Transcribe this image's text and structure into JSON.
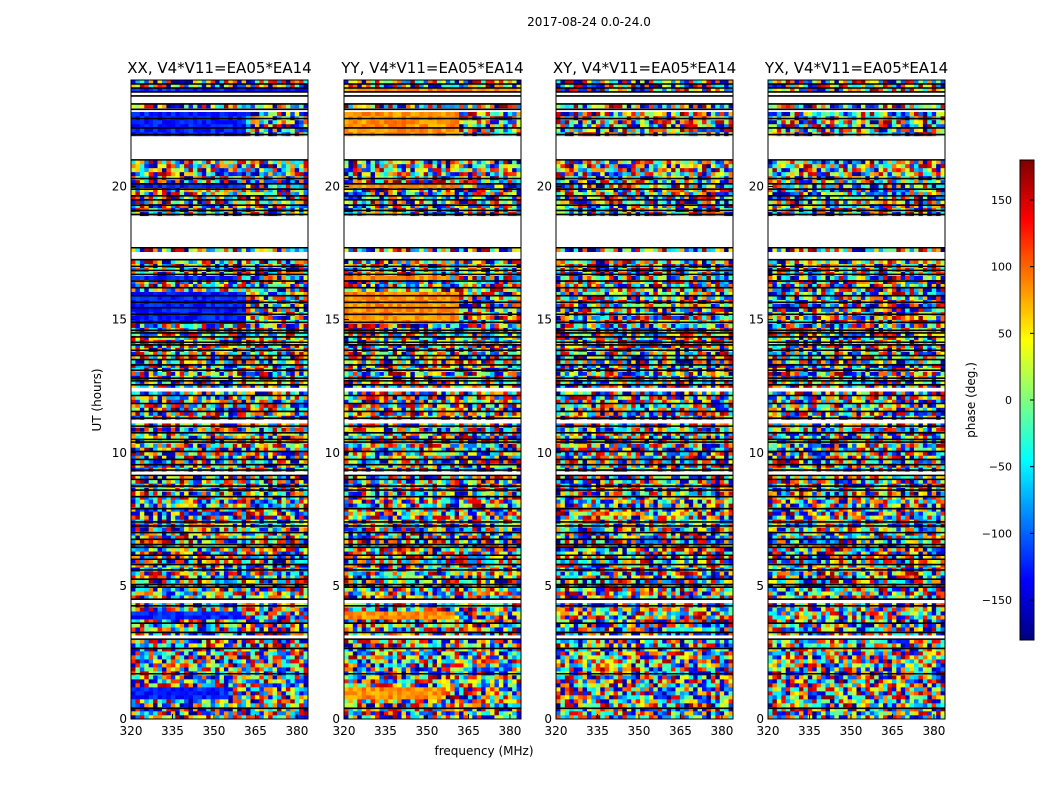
{
  "figure_title": "2017-08-24 0.0-24.0",
  "chart_data": {
    "type": "heatmap",
    "title": "2017-08-24 0.0-24.0",
    "xlabel": "frequency (MHz)",
    "ylabel": "UT (hours)",
    "x_ticks": [
      320,
      335,
      350,
      365,
      380
    ],
    "x_tick_labels": [
      "320",
      "335",
      "350",
      "365",
      "380"
    ],
    "xlim": [
      320,
      384
    ],
    "y_ticks": [
      0,
      5,
      10,
      15,
      20
    ],
    "y_tick_labels": [
      "0",
      "5",
      "10",
      "15",
      "20"
    ],
    "ylim": [
      0,
      24
    ],
    "panels": [
      {
        "title": "XX, V4*V11=EA05*EA14",
        "correlation": "XX",
        "coherent_phase": -125
      },
      {
        "title": "YY, V4*V11=EA05*EA14",
        "correlation": "YY",
        "coherent_phase": 85
      },
      {
        "title": "XY, V4*V11=EA05*EA14",
        "correlation": "XY",
        "coherent_phase": null
      },
      {
        "title": "YX, V4*V11=EA05*EA14",
        "correlation": "YX",
        "coherent_phase": null
      }
    ],
    "colorbar": {
      "label": "phase (deg.)",
      "range": [
        -180,
        180
      ],
      "ticks": [
        -150,
        -100,
        -50,
        0,
        50,
        100,
        150
      ],
      "tick_labels": [
        "−150",
        "−100",
        "−50",
        "0",
        "50",
        "100",
        "150"
      ],
      "colormap": "jet"
    }
  }
}
